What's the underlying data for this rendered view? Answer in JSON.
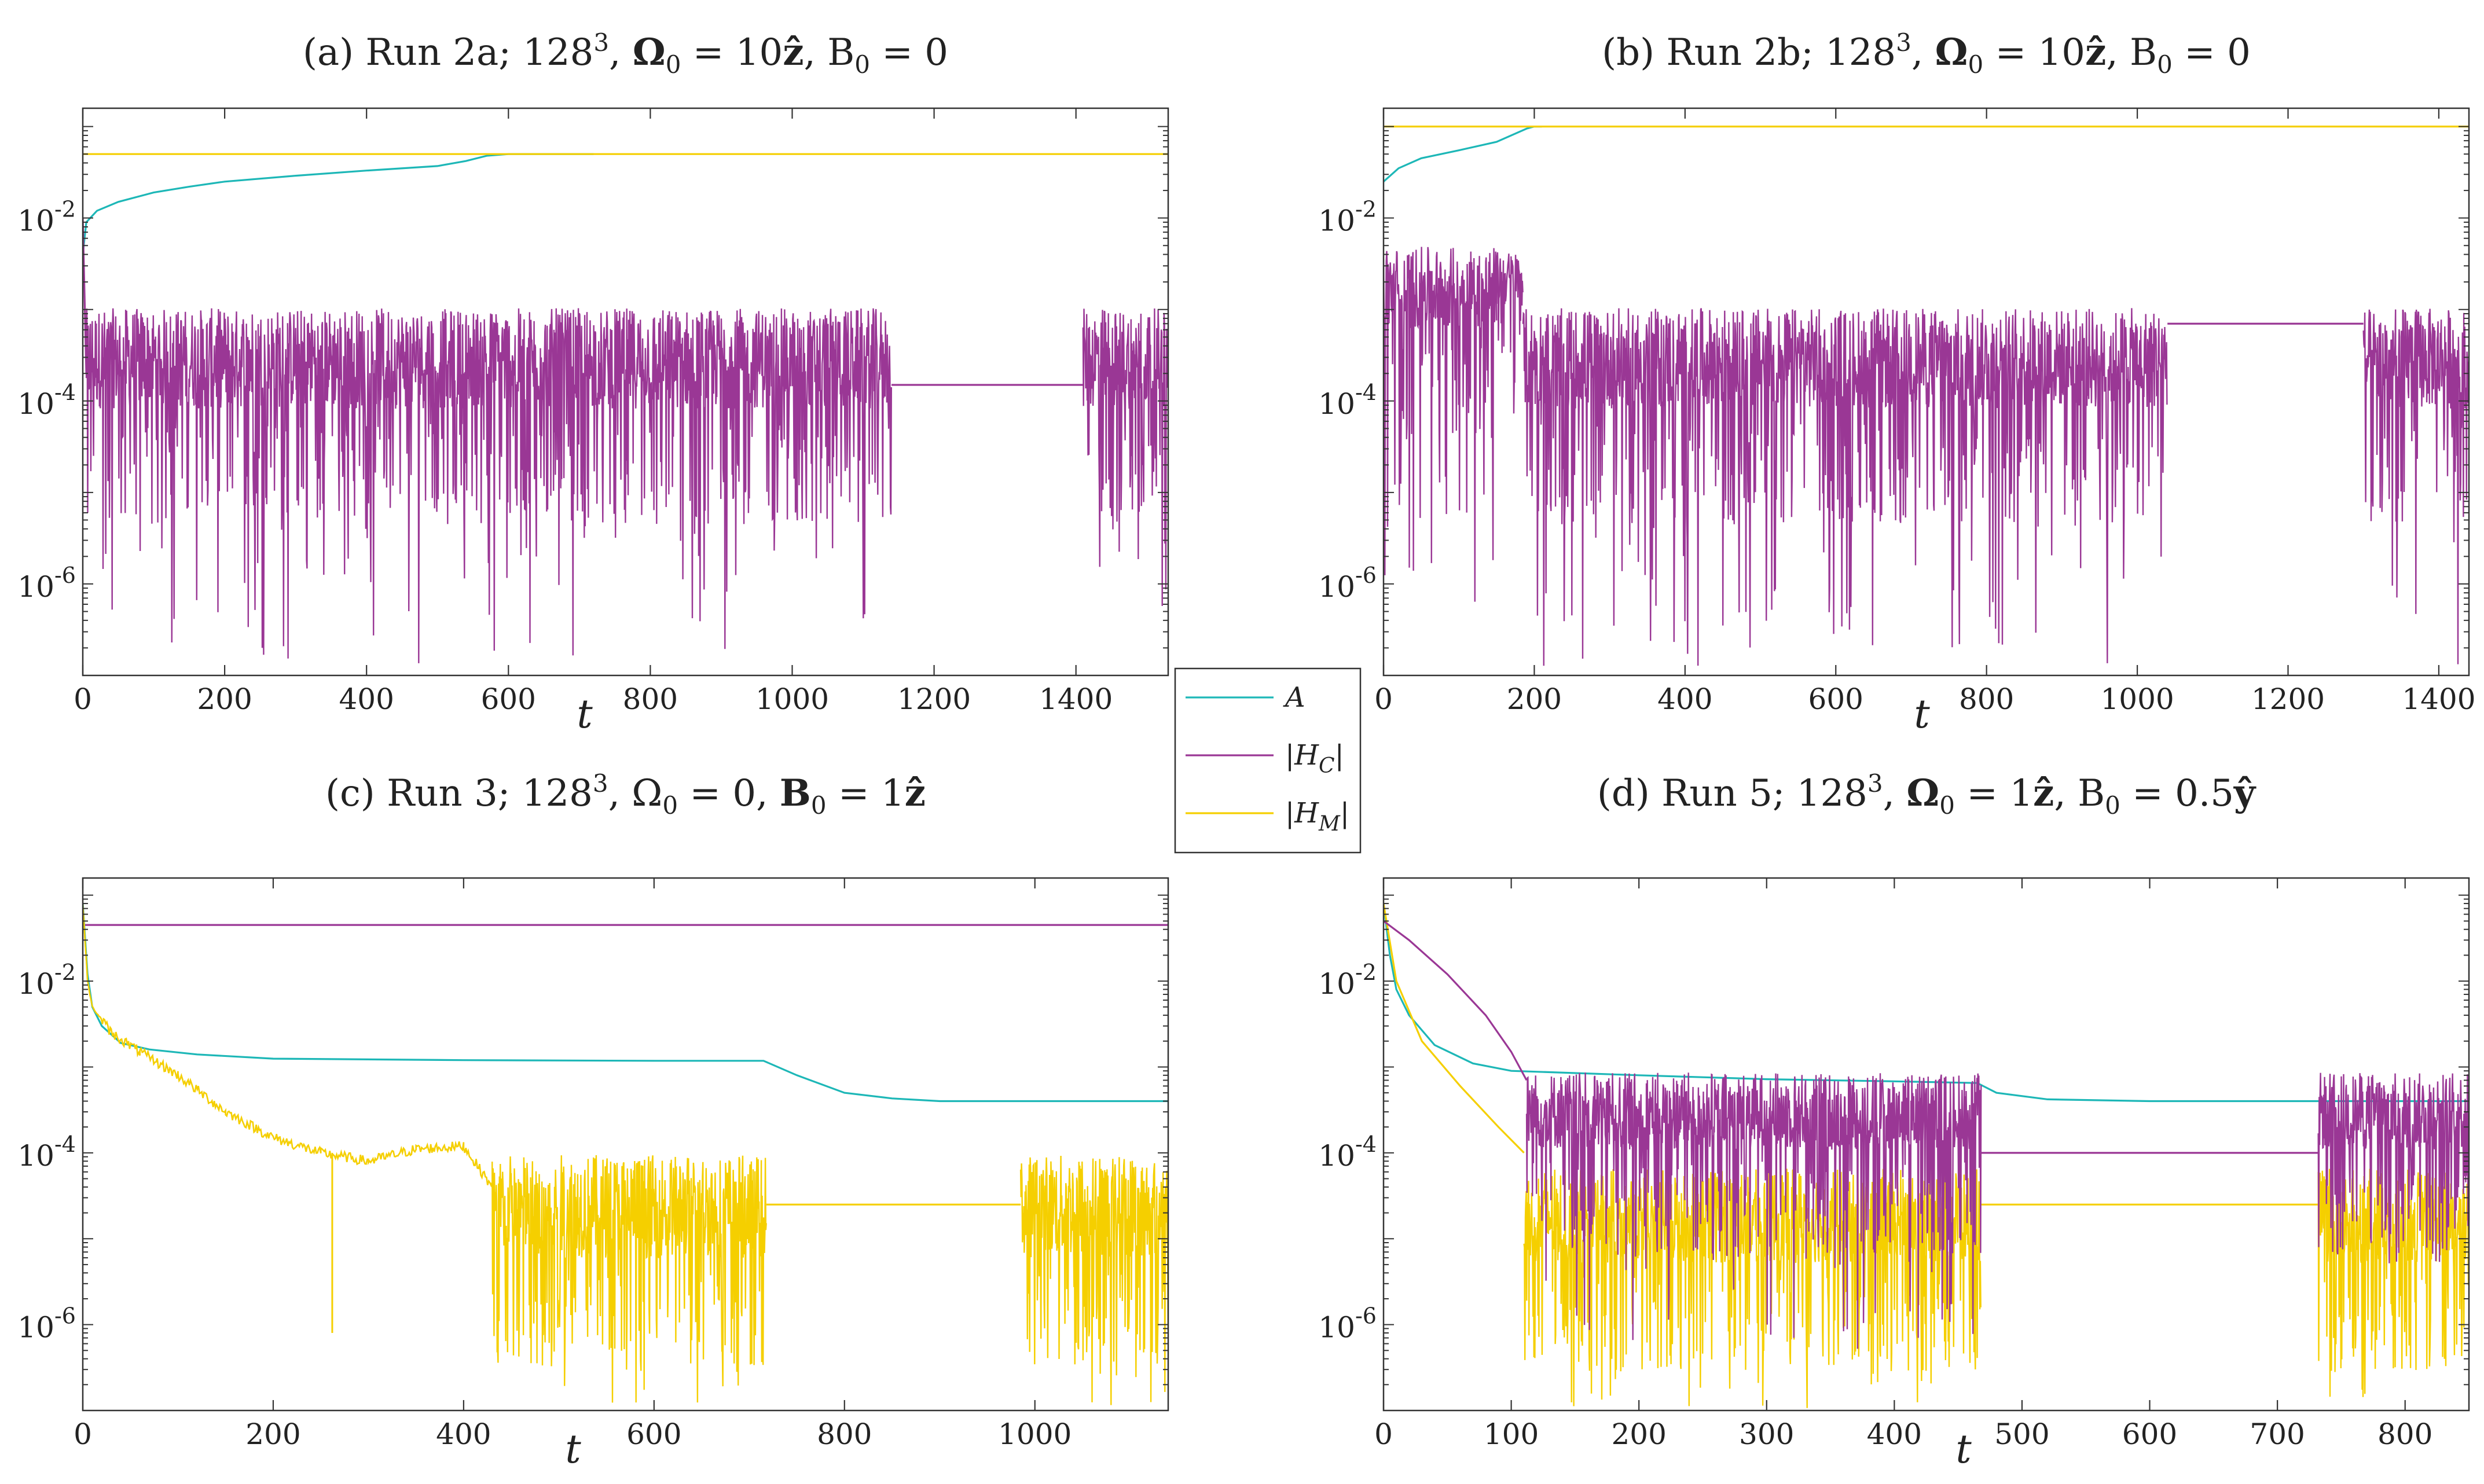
{
  "figure": {
    "colors": {
      "A": "#1db7b7",
      "H_C": "#9a3795",
      "H_M": "#f5cf00",
      "axis": "#333333"
    }
  },
  "legend": {
    "entries": [
      {
        "key": "A",
        "label": "A",
        "color": "#1db7b7"
      },
      {
        "key": "H_C",
        "label": "|H_C|",
        "color": "#9a3795"
      },
      {
        "key": "H_M",
        "label": "|H_M|",
        "color": "#f5cf00"
      }
    ]
  },
  "chart_data": [
    {
      "type": "line",
      "title": "(a) Run 2a; 128^3, Ω0 = 10ẑ, B0 = 0",
      "xlabel": "t",
      "ylabel": "",
      "yscale": "log",
      "xlim": [
        0,
        1530
      ],
      "ylim_log10": [
        -7,
        -0.8
      ],
      "xticks": [
        0,
        200,
        400,
        600,
        800,
        1000,
        1200,
        1400
      ],
      "yticks": [
        {
          "exp": -2,
          "label": "10^-2"
        },
        {
          "exp": -4,
          "label": "10^-4"
        },
        {
          "exp": -6,
          "label": "10^-6"
        }
      ],
      "series": [
        {
          "name": "A",
          "color": "#1db7b7",
          "points": [
            [
              0,
              0.004
            ],
            [
              5,
              0.009
            ],
            [
              20,
              0.012
            ],
            [
              50,
              0.015
            ],
            [
              100,
              0.019
            ],
            [
              150,
              0.022
            ],
            [
              200,
              0.025
            ],
            [
              300,
              0.029
            ],
            [
              400,
              0.033
            ],
            [
              500,
              0.037
            ],
            [
              540,
              0.042
            ],
            [
              570,
              0.048
            ],
            [
              600,
              0.05
            ],
            [
              720,
              0.05
            ]
          ]
        },
        {
          "name": "|H_M|",
          "color": "#f5cf00",
          "points": [
            [
              0,
              0.05
            ],
            [
              1530,
              0.05
            ]
          ]
        },
        {
          "name": "|H_C|",
          "color": "#9a3795",
          "points": [
            [
              0,
              0.01
            ],
            [
              5,
              0.0002
            ]
          ],
          "noisy_segments": [
            {
              "t_start": 5,
              "t_end": 1140,
              "log_center": -3.7,
              "noise_band": 0.55,
              "spike_min": -6.9
            },
            {
              "t_start": 1410,
              "t_end": 1530,
              "log_center": -3.7,
              "noise_band": 0.55,
              "spike_min": -6.3
            }
          ],
          "flat_segments": [
            {
              "t_start": 1140,
              "t_end": 1410,
              "value": 0.00015
            }
          ]
        }
      ]
    },
    {
      "type": "line",
      "title": "(b) Run 2b; 128^3, Ω0 = 10ẑ, B0 = 0",
      "xlabel": "t",
      "ylabel": "",
      "yscale": "log",
      "xlim": [
        0,
        1440
      ],
      "ylim_log10": [
        -7,
        -0.8
      ],
      "xticks": [
        0,
        200,
        400,
        600,
        800,
        1000,
        1200,
        1400
      ],
      "yticks": [
        {
          "exp": -2,
          "label": "10^-2"
        },
        {
          "exp": -4,
          "label": "10^-4"
        },
        {
          "exp": -6,
          "label": "10^-6"
        }
      ],
      "series": [
        {
          "name": "A",
          "color": "#1db7b7",
          "points": [
            [
              0,
              0.025
            ],
            [
              20,
              0.035
            ],
            [
              50,
              0.045
            ],
            [
              100,
              0.055
            ],
            [
              150,
              0.068
            ],
            [
              190,
              0.095
            ],
            [
              200,
              0.1
            ],
            [
              210,
              0.1
            ]
          ]
        },
        {
          "name": "|H_M|",
          "color": "#f5cf00",
          "points": [
            [
              0,
              0.1
            ],
            [
              1440,
              0.1
            ]
          ]
        },
        {
          "name": "|H_C|",
          "color": "#9a3795",
          "points": [],
          "noisy_segments": [
            {
              "t_start": 0,
              "t_end": 150,
              "log_center": -2.9,
              "noise_band": 0.45,
              "spike_min": -6.2
            },
            {
              "t_start": 150,
              "t_end": 185,
              "log_center": -2.75,
              "noise_band": 0.3,
              "spike_min": -4.2
            },
            {
              "t_start": 185,
              "t_end": 1040,
              "log_center": -3.7,
              "noise_band": 0.55,
              "spike_min": -6.9
            },
            {
              "t_start": 1300,
              "t_end": 1440,
              "log_center": -3.7,
              "noise_band": 0.55,
              "spike_min": -6.9
            }
          ],
          "flat_segments": [
            {
              "t_start": 1040,
              "t_end": 1300,
              "value": 0.0007
            }
          ]
        }
      ]
    },
    {
      "type": "line",
      "title": "(c) Run 3; 128^3, Ω0 = 0, B0 = 1ẑ",
      "xlabel": "t",
      "ylabel": "",
      "yscale": "log",
      "xlim": [
        0,
        1140
      ],
      "ylim_log10": [
        -7,
        -0.8
      ],
      "xticks": [
        0,
        200,
        400,
        600,
        800,
        1000
      ],
      "yticks": [
        {
          "exp": -2,
          "label": "10^-2"
        },
        {
          "exp": -4,
          "label": "10^-4"
        },
        {
          "exp": -6,
          "label": "10^-6"
        }
      ],
      "series": [
        {
          "name": "|H_C|",
          "color": "#9a3795",
          "points": [
            [
              0,
              0.045
            ],
            [
              1140,
              0.045
            ]
          ]
        },
        {
          "name": "A",
          "color": "#1db7b7",
          "points": [
            [
              0,
              0.08
            ],
            [
              5,
              0.012
            ],
            [
              10,
              0.005
            ],
            [
              20,
              0.003
            ],
            [
              40,
              0.0019
            ],
            [
              70,
              0.0016
            ],
            [
              120,
              0.0014
            ],
            [
              200,
              0.00125
            ],
            [
              400,
              0.0012
            ],
            [
              600,
              0.00118
            ],
            [
              715,
              0.00118
            ],
            [
              750,
              0.0008
            ],
            [
              800,
              0.0005
            ],
            [
              850,
              0.00043
            ],
            [
              900,
              0.0004
            ],
            [
              1140,
              0.0004
            ]
          ]
        },
        {
          "name": "|H_M|",
          "color": "#f5cf00",
          "points": [
            [
              0,
              0.08
            ],
            [
              5,
              0.01
            ],
            [
              10,
              0.005
            ],
            [
              30,
              0.0025
            ],
            [
              60,
              0.0015
            ],
            [
              100,
              0.0008
            ],
            [
              150,
              0.0003
            ],
            [
              200,
              0.00015
            ],
            [
              250,
              0.0001
            ],
            [
              300,
              8e-05
            ],
            [
              350,
              0.00011
            ],
            [
              400,
              0.00012
            ],
            [
              430,
              4e-05
            ]
          ],
          "noisy_segments": [
            {
              "t_start": 5,
              "t_end": 430,
              "log_center": -3.6,
              "noise_band": 0.12,
              "spike_min": -4.3,
              "follow_base": true
            },
            {
              "t_start": 430,
              "t_end": 718,
              "log_center": -4.8,
              "noise_band": 0.6,
              "spike_min": -7.0
            },
            {
              "t_start": 985,
              "t_end": 1140,
              "log_center": -4.8,
              "noise_band": 0.6,
              "spike_min": -7.0
            }
          ],
          "flat_segments": [
            {
              "t_start": 718,
              "t_end": 985,
              "value": 2.5e-05
            }
          ],
          "annotations": [
            {
              "t": 262,
              "value": 8e-07,
              "kind": "spike"
            }
          ]
        }
      ]
    },
    {
      "type": "line",
      "title": "(d) Run 5; 128^3, Ω0 = 1ẑ, B0 = 0.5ŷ",
      "xlabel": "t",
      "ylabel": "",
      "yscale": "log",
      "xlim": [
        0,
        850
      ],
      "ylim_log10": [
        -7,
        -0.8
      ],
      "xticks": [
        0,
        100,
        200,
        300,
        400,
        500,
        600,
        700,
        800
      ],
      "yticks": [
        {
          "exp": -2,
          "label": "10^-2"
        },
        {
          "exp": -4,
          "label": "10^-4"
        },
        {
          "exp": -6,
          "label": "10^-6"
        }
      ],
      "series": [
        {
          "name": "A",
          "color": "#1db7b7",
          "points": [
            [
              0,
              0.08
            ],
            [
              5,
              0.02
            ],
            [
              10,
              0.008
            ],
            [
              20,
              0.004
            ],
            [
              40,
              0.0018
            ],
            [
              70,
              0.0011
            ],
            [
              100,
              0.0009
            ],
            [
              200,
              0.0008
            ],
            [
              300,
              0.00072
            ],
            [
              400,
              0.00068
            ],
            [
              465,
              0.00065
            ],
            [
              480,
              0.0005
            ],
            [
              520,
              0.00042
            ],
            [
              600,
              0.0004
            ],
            [
              850,
              0.0004
            ]
          ]
        },
        {
          "name": "|H_M|",
          "color": "#f5cf00",
          "points": [
            [
              0,
              0.08
            ],
            [
              10,
              0.01
            ],
            [
              30,
              0.002
            ],
            [
              60,
              0.0006
            ],
            [
              90,
              0.0002
            ],
            [
              110,
              0.0001
            ]
          ],
          "noisy_segments": [
            {
              "t_start": 110,
              "t_end": 468,
              "log_center": -4.9,
              "noise_band": 0.55,
              "spike_min": -7.0
            },
            {
              "t_start": 732,
              "t_end": 850,
              "log_center": -4.9,
              "noise_band": 0.55,
              "spike_min": -7.0
            }
          ],
          "flat_segments": [
            {
              "t_start": 468,
              "t_end": 732,
              "value": 2.5e-05
            }
          ]
        },
        {
          "name": "|H_C|",
          "color": "#9a3795",
          "points": [
            [
              0,
              0.05
            ],
            [
              20,
              0.03
            ],
            [
              50,
              0.012
            ],
            [
              80,
              0.004
            ],
            [
              100,
              0.0015
            ],
            [
              112,
              0.0007
            ]
          ],
          "noisy_segments": [
            {
              "t_start": 112,
              "t_end": 468,
              "log_center": -3.65,
              "noise_band": 0.45,
              "spike_min": -6.3
            },
            {
              "t_start": 732,
              "t_end": 850,
              "log_center": -3.65,
              "noise_band": 0.45,
              "spike_min": -5.4
            }
          ],
          "flat_segments": [
            {
              "t_start": 468,
              "t_end": 732,
              "value": 0.0001
            }
          ]
        }
      ]
    }
  ]
}
